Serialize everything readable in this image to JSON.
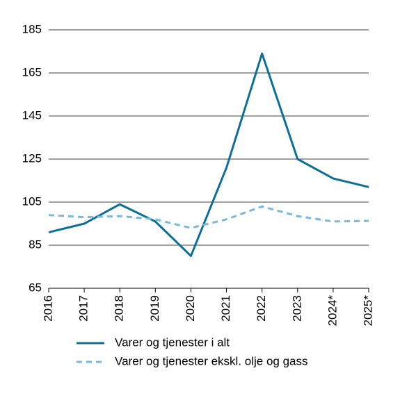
{
  "chart_data": {
    "type": "line",
    "categories": [
      "2016",
      "2017",
      "2018",
      "2019",
      "2020",
      "2021",
      "2022",
      "2023",
      "2024*",
      "2025*"
    ],
    "series": [
      {
        "name": "Varer og tjenester i alt",
        "color": "#0b6f97",
        "dash": false,
        "values": [
          91,
          95,
          104,
          96,
          80,
          121,
          174,
          125,
          116,
          112
        ]
      },
      {
        "name": "Varer og tjenester ekskl. olje og gass",
        "color": "#7ab8d9",
        "dash": true,
        "values": [
          99,
          98,
          98.5,
          97,
          93,
          97,
          103,
          98.5,
          96,
          96.3
        ]
      }
    ],
    "ylim": [
      65,
      185
    ],
    "yticks": [
      65,
      85,
      105,
      125,
      145,
      165,
      185
    ],
    "grid": true
  }
}
